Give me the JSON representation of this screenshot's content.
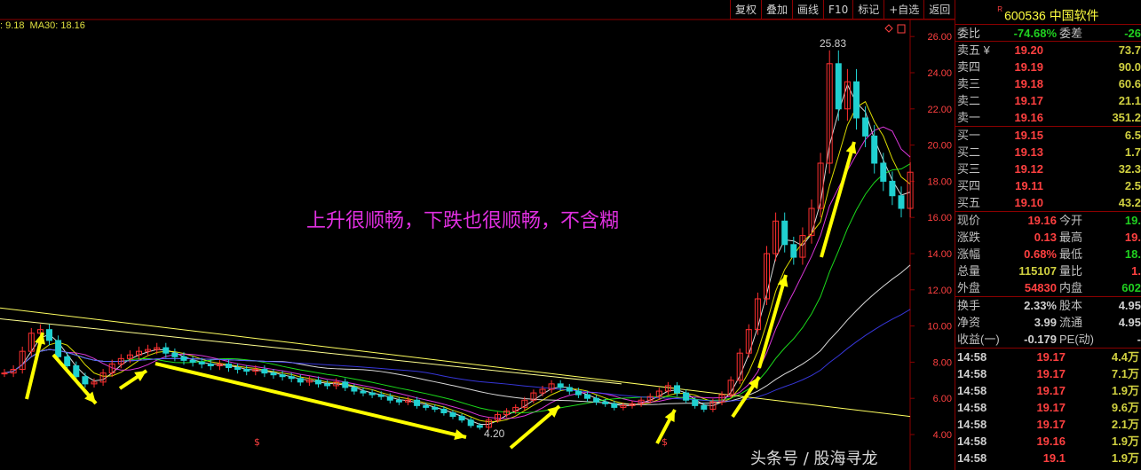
{
  "toolbar": {
    "items": [
      "复权",
      "叠加",
      "画线",
      "F10",
      "标记",
      "+自选",
      "返回"
    ]
  },
  "ma_labels": [
    ": 9.18",
    "MA30: 18.16"
  ],
  "annotation": "上升很顺畅，下跌也很顺畅，不含糊",
  "watermark": "头条号 / 股海寻龙",
  "high_label": "25.83",
  "low_label": "4.20",
  "colors": {
    "up": "#ff3030",
    "down": "#20d0d0",
    "annotation": "#e030e0",
    "arrow": "#ffff00",
    "grid": "#8b0000"
  },
  "chart_data": {
    "type": "candlestick",
    "ylim": [
      4,
      26
    ],
    "yticks": [
      "26.00",
      "24.00",
      "22.00",
      "20.00",
      "18.00",
      "16.00",
      "14.00",
      "12.00",
      "10.00",
      "8.00",
      "6.00",
      "4.00"
    ],
    "closes": [
      7.4,
      7.6,
      8.6,
      9.6,
      9.8,
      9.2,
      8.3,
      7.8,
      7.2,
      6.8,
      6.9,
      7.4,
      7.9,
      8.2,
      8.4,
      8.6,
      8.7,
      8.8,
      8.5,
      8.3,
      8.1,
      8.0,
      7.9,
      7.8,
      7.9,
      7.7,
      7.6,
      7.5,
      7.6,
      7.4,
      7.3,
      7.2,
      7.1,
      6.9,
      7.0,
      6.8,
      6.7,
      6.9,
      6.6,
      6.4,
      6.3,
      6.2,
      6.1,
      5.9,
      5.8,
      5.9,
      5.6,
      5.5,
      5.4,
      5.2,
      5.0,
      4.8,
      4.5,
      4.4,
      4.8,
      5.1,
      5.3,
      5.5,
      5.9,
      6.3,
      6.5,
      6.8,
      6.6,
      6.4,
      6.2,
      6.0,
      5.8,
      5.7,
      5.5,
      5.6,
      5.7,
      5.9,
      6.1,
      6.4,
      6.7,
      6.3,
      5.9,
      5.6,
      5.4,
      5.8,
      6.2,
      7.0,
      8.5,
      9.8,
      11.5,
      14.0,
      15.8,
      14.5,
      13.8,
      15.0,
      16.5,
      19.0,
      24.5,
      22.0,
      23.5,
      21.5,
      20.5,
      19.0,
      18.0,
      17.2,
      16.5,
      18.5
    ],
    "high": 25.83,
    "low": 4.2
  },
  "quote": {
    "code": "600536",
    "name": "中国软件",
    "r": "R",
    "weibi": {
      "label": "委比",
      "value": "-74.68%",
      "label2": "委差",
      "value2": "-26"
    },
    "asks": [
      {
        "label": "卖五 ¥",
        "price": "19.20",
        "vol": "73.7"
      },
      {
        "label": "卖四",
        "price": "19.19",
        "vol": "90.0"
      },
      {
        "label": "卖三",
        "price": "19.18",
        "vol": "60.6"
      },
      {
        "label": "卖二",
        "price": "19.17",
        "vol": "21.1"
      },
      {
        "label": "卖一",
        "price": "19.16",
        "vol": "351.2"
      }
    ],
    "bids": [
      {
        "label": "买一",
        "price": "19.15",
        "vol": "6.5"
      },
      {
        "label": "买二",
        "price": "19.13",
        "vol": "1.7"
      },
      {
        "label": "买三",
        "price": "19.12",
        "vol": "32.3"
      },
      {
        "label": "买四",
        "price": "19.11",
        "vol": "2.5"
      },
      {
        "label": "买五",
        "price": "19.10",
        "vol": "43.2"
      }
    ],
    "stats": [
      {
        "l1": "现价",
        "v1": "19.16",
        "c1": "red",
        "l2": "今开",
        "v2": "19.",
        "c2": "grn"
      },
      {
        "l1": "涨跌",
        "v1": "0.13",
        "c1": "red",
        "l2": "最高",
        "v2": "19.",
        "c2": "red"
      },
      {
        "l1": "涨幅",
        "v1": "0.68%",
        "c1": "red",
        "l2": "最低",
        "v2": "18.",
        "c2": "grn"
      },
      {
        "l1": "总量",
        "v1": "115107",
        "c1": "yel",
        "l2": "量比",
        "v2": "1.",
        "c2": "red"
      },
      {
        "l1": "外盘",
        "v1": "54830",
        "c1": "red",
        "l2": "内盘",
        "v2": "602",
        "c2": "grn"
      }
    ],
    "fund": [
      {
        "l1": "换手",
        "v1": "2.33%",
        "l2": "股本",
        "v2": "4.95"
      },
      {
        "l1": "净资",
        "v1": "3.99",
        "l2": "流通",
        "v2": "4.95"
      },
      {
        "l1": "收益(一)",
        "v1": "-0.179",
        "l2": "PE(动)",
        "v2": "-"
      }
    ],
    "ticks": [
      {
        "t": "14:58",
        "p": "19.17",
        "q": "4.4万"
      },
      {
        "t": "14:58",
        "p": "19.17",
        "q": "7.1万"
      },
      {
        "t": "14:58",
        "p": "19.17",
        "q": "1.9万"
      },
      {
        "t": "14:58",
        "p": "19.17",
        "q": "9.6万"
      },
      {
        "t": "14:58",
        "p": "19.17",
        "q": "2.1万"
      },
      {
        "t": "14:58",
        "p": "19.16",
        "q": "1.9万"
      },
      {
        "t": "14:58",
        "p": "19.1",
        "q": "1.9万"
      }
    ]
  }
}
